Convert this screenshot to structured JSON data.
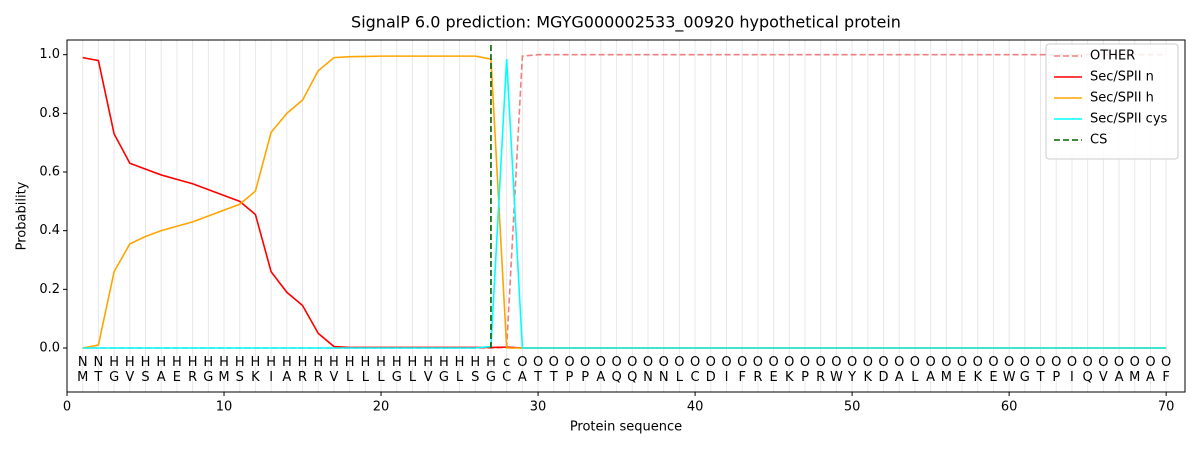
{
  "chart_data": {
    "type": "line",
    "title": "SignalP 6.0 prediction: MGYG000002533_00920 hypothetical protein",
    "x_label": "Protein sequence",
    "y_label": "Probability",
    "x": [
      1,
      2,
      3,
      4,
      5,
      6,
      7,
      8,
      9,
      10,
      11,
      12,
      13,
      14,
      15,
      16,
      17,
      18,
      19,
      20,
      21,
      22,
      23,
      24,
      25,
      26,
      27,
      28,
      29,
      30,
      31,
      32,
      33,
      34,
      35,
      36,
      37,
      38,
      39,
      40,
      41,
      42,
      43,
      44,
      45,
      46,
      47,
      48,
      49,
      50,
      51,
      52,
      53,
      54,
      55,
      56,
      57,
      58,
      59,
      60,
      61,
      62,
      63,
      64,
      65,
      66,
      67,
      68,
      69,
      70
    ],
    "residues": [
      "M",
      "T",
      "G",
      "V",
      "S",
      "A",
      "E",
      "R",
      "G",
      "M",
      "S",
      "K",
      "I",
      "A",
      "R",
      "R",
      "V",
      "L",
      "L",
      "L",
      "G",
      "L",
      "V",
      "G",
      "L",
      "S",
      "G",
      "C",
      "A",
      "T",
      "T",
      "P",
      "P",
      "A",
      "Q",
      "Q",
      "N",
      "N",
      "L",
      "C",
      "D",
      "I",
      "F",
      "R",
      "E",
      "K",
      "P",
      "R",
      "W",
      "Y",
      "K",
      "D",
      "A",
      "L",
      "A",
      "M",
      "E",
      "K",
      "E",
      "W",
      "G",
      "T",
      "P",
      "I",
      "Q",
      "V",
      "A",
      "M",
      "A",
      "F"
    ],
    "labels": [
      "N",
      "N",
      "H",
      "H",
      "H",
      "H",
      "H",
      "H",
      "H",
      "H",
      "H",
      "H",
      "H",
      "H",
      "H",
      "H",
      "H",
      "H",
      "H",
      "H",
      "H",
      "H",
      "H",
      "H",
      "H",
      "H",
      "H",
      "c",
      "O",
      "O",
      "O",
      "O",
      "O",
      "O",
      "O",
      "O",
      "O",
      "O",
      "O",
      "O",
      "O",
      "O",
      "O",
      "O",
      "O",
      "O",
      "O",
      "O",
      "O",
      "O",
      "O",
      "O",
      "O",
      "O",
      "O",
      "O",
      "O",
      "O",
      "O",
      "O",
      "O",
      "O",
      "O",
      "O",
      "O",
      "O",
      "O",
      "O",
      "O",
      "O"
    ],
    "label_colors": {
      "N": "#ff0000",
      "H": "#ffa500",
      "c": "#00e5e5",
      "O": "#808080"
    },
    "series": [
      {
        "name": "OTHER",
        "color": "#f08080",
        "dash": true,
        "values": [
          0,
          0,
          0,
          0,
          0,
          0,
          0,
          0,
          0,
          0,
          0,
          0,
          0,
          0,
          0,
          0,
          0,
          0,
          0,
          0,
          0,
          0,
          0,
          0,
          0,
          0,
          0,
          0.002,
          0.995,
          1,
          1,
          1,
          1,
          1,
          1,
          1,
          1,
          1,
          1,
          1,
          1,
          1,
          1,
          1,
          1,
          1,
          1,
          1,
          1,
          1,
          1,
          1,
          1,
          1,
          1,
          1,
          1,
          1,
          1,
          1,
          1,
          1,
          1,
          1,
          1,
          1,
          1,
          1,
          1,
          1
        ]
      },
      {
        "name": "Sec/SPII n",
        "color": "#ff0000",
        "dash": false,
        "values": [
          0.99,
          0.98,
          0.73,
          0.63,
          0.61,
          0.59,
          0.575,
          0.56,
          0.54,
          0.52,
          0.5,
          0.455,
          0.26,
          0.19,
          0.145,
          0.05,
          0.005,
          0.002,
          0.002,
          0.002,
          0.002,
          0.002,
          0.002,
          0.002,
          0.002,
          0.002,
          0.002,
          0.003,
          0,
          0,
          0,
          0,
          0,
          0,
          0,
          0,
          0,
          0,
          0,
          0,
          0,
          0,
          0,
          0,
          0,
          0,
          0,
          0,
          0,
          0,
          0,
          0,
          0,
          0,
          0,
          0,
          0,
          0,
          0,
          0,
          0,
          0,
          0,
          0,
          0,
          0,
          0,
          0,
          0,
          0
        ]
      },
      {
        "name": "Sec/SPII h",
        "color": "#ffa500",
        "dash": false,
        "values": [
          0,
          0.01,
          0.26,
          0.355,
          0.38,
          0.4,
          0.415,
          0.43,
          0.45,
          0.47,
          0.49,
          0.535,
          0.735,
          0.8,
          0.845,
          0.945,
          0.99,
          0.993,
          0.994,
          0.995,
          0.995,
          0.995,
          0.995,
          0.995,
          0.995,
          0.995,
          0.985,
          0,
          0,
          0,
          0,
          0,
          0,
          0,
          0,
          0,
          0,
          0,
          0,
          0,
          0,
          0,
          0,
          0,
          0,
          0,
          0,
          0,
          0,
          0,
          0,
          0,
          0,
          0,
          0,
          0,
          0,
          0,
          0,
          0,
          0,
          0,
          0,
          0,
          0,
          0,
          0,
          0,
          0,
          0
        ]
      },
      {
        "name": "Sec/SPII cys",
        "color": "#00ffff",
        "dash": false,
        "values": [
          0,
          0,
          0,
          0,
          0,
          0,
          0,
          0,
          0,
          0,
          0,
          0,
          0,
          0,
          0,
          0,
          0,
          0,
          0,
          0,
          0,
          0,
          0,
          0,
          0,
          0,
          0.005,
          0.985,
          0,
          0,
          0,
          0,
          0,
          0,
          0,
          0,
          0,
          0,
          0,
          0,
          0,
          0,
          0,
          0,
          0,
          0,
          0,
          0,
          0,
          0,
          0,
          0,
          0,
          0,
          0,
          0,
          0,
          0,
          0,
          0,
          0,
          0,
          0,
          0,
          0,
          0,
          0,
          0,
          0,
          0
        ]
      },
      {
        "name": "CS",
        "color": "#006400",
        "dash": true,
        "x": [
          27,
          27
        ],
        "values": [
          0,
          1.04
        ]
      }
    ],
    "xlim": [
      0,
      71.2
    ],
    "ylim": [
      -0.15,
      1.05
    ],
    "xticks": [
      0,
      10,
      20,
      30,
      40,
      50,
      60,
      70
    ],
    "yticks": [
      {
        "value": 0,
        "label": "0.0"
      },
      {
        "value": 0.2,
        "label": "0.2"
      },
      {
        "value": 0.4,
        "label": "0.4"
      },
      {
        "value": 0.6,
        "label": "0.6"
      },
      {
        "value": 0.8,
        "label": "0.8"
      },
      {
        "value": 1,
        "label": "1.0"
      }
    ],
    "grid": true,
    "legend": "upper right"
  }
}
